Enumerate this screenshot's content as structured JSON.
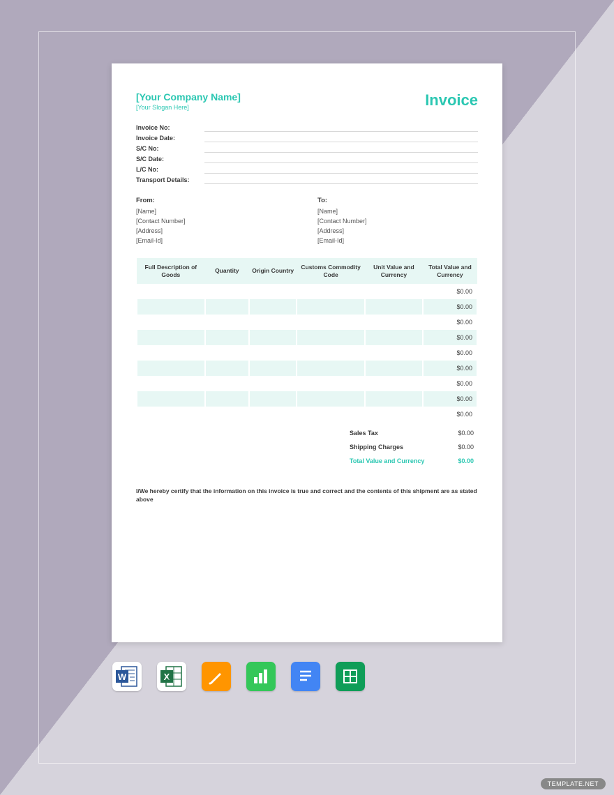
{
  "colors": {
    "accent": "#2bc7b2",
    "header_bg": "#e7f7f4",
    "bg_top": "#b0a9bc",
    "bg_bottom": "#d6d3dc",
    "text": "#3a3a3a"
  },
  "header": {
    "company": "[Your Company Name]",
    "slogan": "[Your Slogan Here]",
    "title": "Invoice"
  },
  "meta": {
    "labels": [
      "Invoice  No:",
      "Invoice Date:",
      "S/C No:",
      "S/C Date:",
      "L/C No:",
      "Transport Details:"
    ]
  },
  "from": {
    "head": "From:",
    "lines": [
      "[Name]",
      "[Contact Number]",
      "[Address]",
      "[Email-Id]"
    ]
  },
  "to": {
    "head": "To:",
    "lines": [
      "[Name]",
      "[Contact Number]",
      "[Address]",
      "[Email-Id]"
    ]
  },
  "table": {
    "columns": [
      "Full Description of Goods",
      "Quantity",
      "Origin Country",
      "Customs Commodity Code",
      "Unit Value and Currency",
      "Total Value and Currency"
    ],
    "col_widths": [
      "20%",
      "13%",
      "14%",
      "20%",
      "17%",
      "16%"
    ],
    "rows": [
      {
        "alt": false,
        "total": "$0.00"
      },
      {
        "alt": true,
        "total": "$0.00"
      },
      {
        "alt": false,
        "total": "$0.00"
      },
      {
        "alt": true,
        "total": "$0.00"
      },
      {
        "alt": false,
        "total": "$0.00"
      },
      {
        "alt": true,
        "total": "$0.00"
      },
      {
        "alt": false,
        "total": "$0.00"
      },
      {
        "alt": true,
        "total": "$0.00"
      },
      {
        "alt": false,
        "total": "$0.00"
      }
    ]
  },
  "totals": {
    "sales_tax": {
      "label": "Sales Tax",
      "value": "$0.00"
    },
    "shipping": {
      "label": "Shipping Charges",
      "value": "$0.00"
    },
    "grand": {
      "label": "Total Value and Currency",
      "value": "$0.00"
    }
  },
  "certification": "I/We hereby certify that the information on this invoice is true and correct and the contents of this shipment are as stated above",
  "apps": [
    {
      "name": "word",
      "bg": "#ffffff",
      "fg": "#2b579a"
    },
    {
      "name": "excel",
      "bg": "#ffffff",
      "fg": "#217346"
    },
    {
      "name": "pages",
      "bg": "#ff9500",
      "fg": "#ffffff"
    },
    {
      "name": "numbers",
      "bg": "#34c759",
      "fg": "#ffffff"
    },
    {
      "name": "gdocs",
      "bg": "#4285f4",
      "fg": "#ffffff"
    },
    {
      "name": "gsheets",
      "bg": "#0f9d58",
      "fg": "#ffffff"
    }
  ],
  "watermark": "TEMPLATE.NET"
}
